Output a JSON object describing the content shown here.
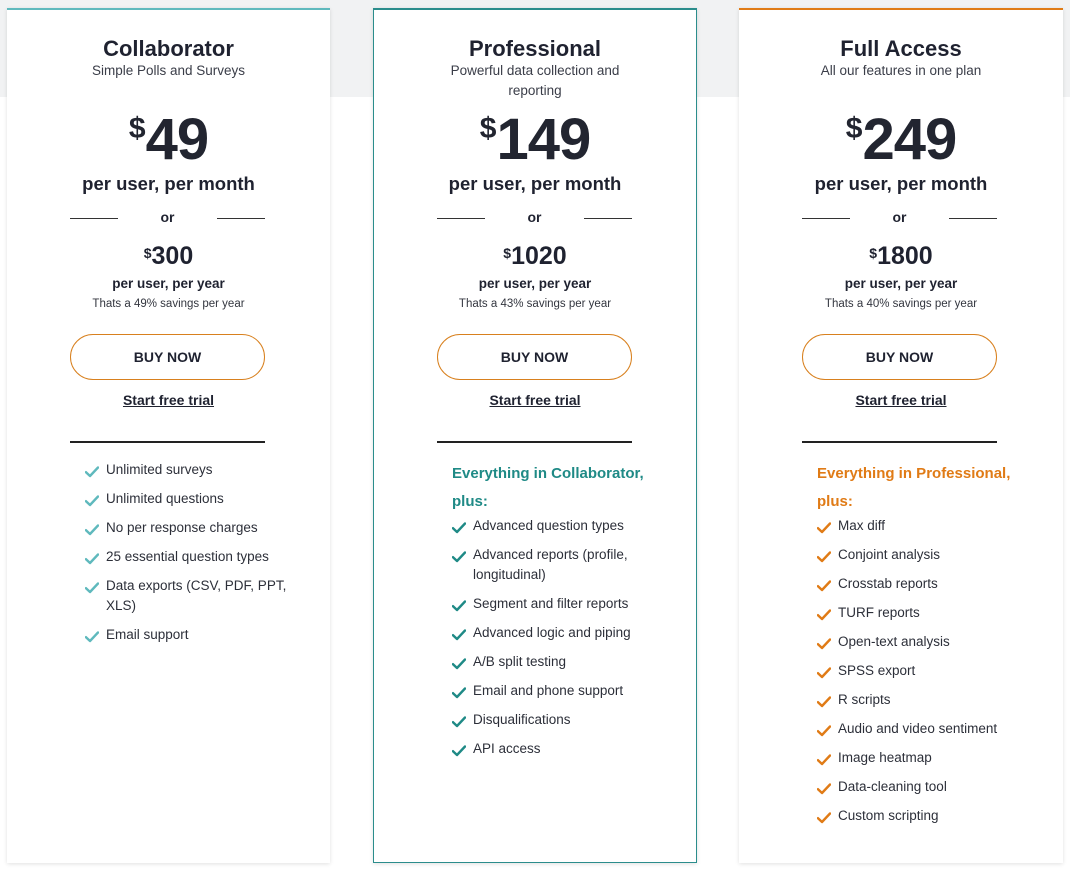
{
  "colors": {
    "teal_light": "#5fb9bd",
    "teal": "#1f8a86",
    "orange": "#e07b16"
  },
  "plans": [
    {
      "name": "Collaborator",
      "subtitle": "Simple Polls and Surveys",
      "currency": "$",
      "monthly_price": "49",
      "monthly_label": "per user, per month",
      "or_label": "or",
      "yearly_price": "300",
      "yearly_label": "per user, per year",
      "savings": "Thats a 49% savings per year",
      "buy_label": "BUY NOW",
      "trial_label": "Start free trial",
      "includes": "",
      "check_icon": "check-icon",
      "features": [
        "Unlimited surveys",
        "Unlimited questions",
        "No per response charges",
        "25 essential question types",
        "Data exports (CSV, PDF, PPT, XLS)",
        "Email support"
      ]
    },
    {
      "name": "Professional",
      "subtitle": "Powerful data collection and reporting",
      "currency": "$",
      "monthly_price": "149",
      "monthly_label": "per user, per month",
      "or_label": "or",
      "yearly_price": "1020",
      "yearly_label": "per user, per year",
      "savings": "Thats a 43% savings per year",
      "buy_label": "BUY NOW",
      "trial_label": "Start free trial",
      "includes": "Everything in Collaborator, plus:",
      "check_icon": "check-icon",
      "features": [
        "Advanced question types",
        "Advanced reports (profile, longitudinal)",
        "Segment and filter reports",
        "Advanced logic and piping",
        "A/B split testing",
        "Email and phone support",
        "Disqualifications",
        "API access"
      ]
    },
    {
      "name": "Full Access",
      "subtitle": "All our features in one plan",
      "currency": "$",
      "monthly_price": "249",
      "monthly_label": "per user, per month",
      "or_label": "or",
      "yearly_price": "1800",
      "yearly_label": "per user, per year",
      "savings": "Thats a 40% savings per year",
      "buy_label": "BUY NOW",
      "trial_label": "Start free trial",
      "includes": "Everything in Professional, plus:",
      "check_icon": "check-icon",
      "features": [
        "Max diff",
        "Conjoint analysis",
        "Crosstab reports",
        "TURF reports",
        "Open-text analysis",
        "SPSS export",
        "R scripts",
        "Audio and video sentiment",
        "Image heatmap",
        "Data-cleaning tool",
        "Custom scripting"
      ]
    }
  ]
}
